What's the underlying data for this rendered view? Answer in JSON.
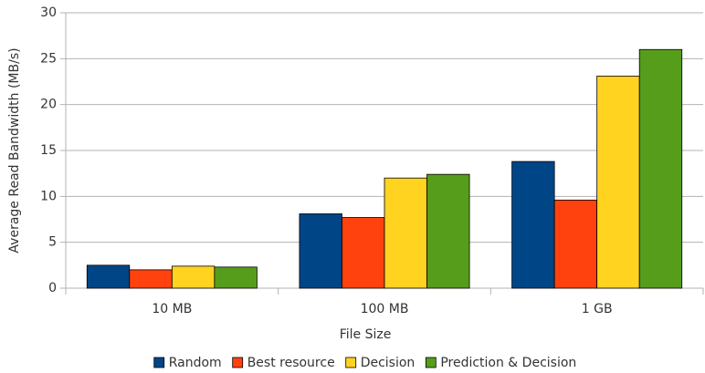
{
  "chart_data": {
    "type": "bar",
    "x_label": "File Size",
    "y_label": "Average Read Bandwidth (MB/s)",
    "categories": [
      "10 MB",
      "100 MB",
      "1 GB"
    ],
    "series": [
      {
        "name": "Random",
        "color": "#004586",
        "values": [
          2.5,
          8.1,
          13.8
        ]
      },
      {
        "name": "Best resource",
        "color": "#ff420e",
        "values": [
          2.0,
          7.7,
          9.6
        ]
      },
      {
        "name": "Decision",
        "color": "#ffd320",
        "values": [
          2.4,
          12.0,
          23.1
        ]
      },
      {
        "name": "Prediction & Decision",
        "color": "#579d1c",
        "values": [
          2.3,
          12.4,
          26.0
        ]
      }
    ],
    "ylim": [
      0,
      30
    ],
    "yticks": [
      0,
      5,
      10,
      15,
      20,
      25,
      30
    ],
    "grid": true,
    "legend": "bottom"
  }
}
